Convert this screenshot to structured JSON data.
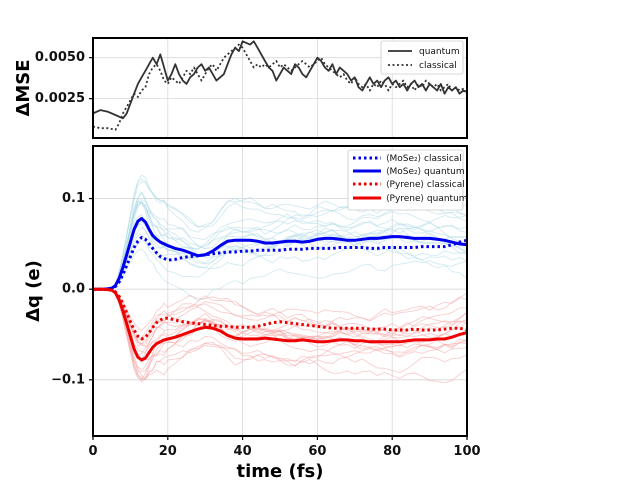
{
  "chart_data": [
    {
      "type": "line",
      "panel": "top",
      "title": "",
      "xlabel": "",
      "ylabel": "ΔMSE",
      "xlim": [
        0,
        100
      ],
      "ylim": [
        0.0001,
        0.0062
      ],
      "grid": true,
      "yticks": [
        {
          "value": 0.0025,
          "label": "0.0025"
        },
        {
          "value": 0.005,
          "label": "0.0050"
        }
      ],
      "legend": {
        "position": "top-right",
        "entries": [
          "quantum",
          "classical"
        ]
      },
      "series": [
        {
          "name": "quantum",
          "style": "solid",
          "color": "#333333",
          "x": [
            0,
            2,
            4,
            6,
            8,
            9,
            10,
            11,
            12,
            13,
            14,
            15,
            16,
            17,
            18,
            19,
            20,
            21,
            22,
            23,
            24,
            25,
            26,
            27,
            28,
            29,
            30,
            31,
            32,
            33,
            34,
            35,
            36,
            37,
            38,
            39,
            40,
            41,
            42,
            43,
            44,
            45,
            46,
            47,
            48,
            49,
            50,
            51,
            52,
            53,
            54,
            55,
            56,
            57,
            58,
            59,
            60,
            61,
            62,
            63,
            64,
            65,
            66,
            67,
            68,
            69,
            70,
            71,
            72,
            73,
            74,
            75,
            76,
            77,
            78,
            79,
            80,
            81,
            82,
            83,
            84,
            85,
            86,
            87,
            88,
            89,
            90,
            91,
            92,
            93,
            94,
            95,
            96,
            97,
            98,
            99,
            100
          ],
          "y": [
            0.0016,
            0.0018,
            0.0017,
            0.0015,
            0.0013,
            0.0016,
            0.0022,
            0.0028,
            0.0034,
            0.0038,
            0.0042,
            0.0046,
            0.005,
            0.0046,
            0.0052,
            0.0044,
            0.0036,
            0.004,
            0.0046,
            0.004,
            0.0036,
            0.0034,
            0.0038,
            0.004,
            0.0044,
            0.0046,
            0.0042,
            0.0044,
            0.004,
            0.0036,
            0.0038,
            0.004,
            0.0046,
            0.0052,
            0.0056,
            0.0054,
            0.006,
            0.0059,
            0.0058,
            0.006,
            0.0056,
            0.0052,
            0.0048,
            0.0044,
            0.0042,
            0.0036,
            0.004,
            0.0044,
            0.0042,
            0.004,
            0.0046,
            0.0044,
            0.004,
            0.0038,
            0.0042,
            0.0046,
            0.005,
            0.0048,
            0.0044,
            0.0042,
            0.0046,
            0.004,
            0.0044,
            0.0042,
            0.004,
            0.0036,
            0.0038,
            0.0032,
            0.003,
            0.0034,
            0.0038,
            0.0034,
            0.0036,
            0.0032,
            0.0036,
            0.0038,
            0.0034,
            0.0036,
            0.0032,
            0.0034,
            0.003,
            0.0034,
            0.0036,
            0.0032,
            0.0034,
            0.003,
            0.0034,
            0.0032,
            0.003,
            0.0034,
            0.0028,
            0.0032,
            0.003,
            0.0032,
            0.0028,
            0.003,
            0.0029
          ]
        },
        {
          "name": "classical",
          "style": "dotted",
          "color": "#333333",
          "x": [
            0,
            2,
            4,
            6,
            7,
            8,
            9,
            10,
            11,
            12,
            13,
            14,
            15,
            16,
            17,
            18,
            19,
            20,
            21,
            22,
            23,
            24,
            25,
            26,
            27,
            28,
            29,
            30,
            31,
            32,
            33,
            34,
            35,
            36,
            37,
            38,
            39,
            40,
            41,
            42,
            43,
            44,
            45,
            46,
            47,
            48,
            49,
            50,
            51,
            52,
            53,
            54,
            55,
            56,
            57,
            58,
            59,
            60,
            61,
            62,
            63,
            64,
            65,
            66,
            67,
            68,
            69,
            70,
            71,
            72,
            73,
            74,
            75,
            76,
            77,
            78,
            79,
            80,
            81,
            82,
            83,
            84,
            85,
            86,
            87,
            88,
            89,
            90,
            91,
            92,
            93,
            94,
            95,
            96,
            97,
            98,
            99,
            100
          ],
          "y": [
            0.0008,
            0.0007,
            0.0007,
            0.0006,
            0.001,
            0.0016,
            0.002,
            0.0024,
            0.0028,
            0.0026,
            0.003,
            0.0032,
            0.004,
            0.0044,
            0.0046,
            0.0042,
            0.0036,
            0.0034,
            0.0038,
            0.0036,
            0.0034,
            0.0038,
            0.0042,
            0.004,
            0.0044,
            0.004,
            0.0036,
            0.004,
            0.0044,
            0.0046,
            0.0042,
            0.0046,
            0.005,
            0.0052,
            0.0054,
            0.0056,
            0.0058,
            0.0056,
            0.0052,
            0.0048,
            0.0044,
            0.0046,
            0.0044,
            0.0046,
            0.0044,
            0.0046,
            0.0048,
            0.0044,
            0.0046,
            0.0044,
            0.0042,
            0.0044,
            0.0046,
            0.0048,
            0.0046,
            0.0044,
            0.0046,
            0.0048,
            0.005,
            0.0046,
            0.0044,
            0.0042,
            0.004,
            0.0038,
            0.004,
            0.0036,
            0.0034,
            0.0038,
            0.0034,
            0.0032,
            0.0034,
            0.003,
            0.0034,
            0.0032,
            0.0036,
            0.0034,
            0.003,
            0.0034,
            0.0032,
            0.0034,
            0.0036,
            0.0032,
            0.0034,
            0.003,
            0.0034,
            0.0032,
            0.0036,
            0.0034,
            0.0032,
            0.0034,
            0.003,
            0.0032,
            0.0034,
            0.003,
            0.0032,
            0.003,
            0.0031,
            0.003
          ]
        }
      ]
    },
    {
      "type": "line",
      "panel": "bottom",
      "title": "",
      "xlabel": "time (fs)",
      "ylabel": "Δq (e)",
      "xlim": [
        0,
        100
      ],
      "ylim": [
        -0.162,
        0.158
      ],
      "grid": true,
      "xticks": [
        {
          "value": 0,
          "label": "0"
        },
        {
          "value": 20,
          "label": "20"
        },
        {
          "value": 40,
          "label": "40"
        },
        {
          "value": 60,
          "label": "60"
        },
        {
          "value": 80,
          "label": "80"
        },
        {
          "value": 100,
          "label": "100"
        }
      ],
      "yticks": [
        {
          "value": -0.1,
          "label": "−0.1"
        },
        {
          "value": 0.0,
          "label": "0.0"
        },
        {
          "value": 0.1,
          "label": "0.1"
        }
      ],
      "legend": {
        "position": "top-right",
        "entries": [
          "⟨MoSe₂⟩ classical",
          "⟨MoSe₂⟩ quantum",
          "⟨Pyrene⟩ classical",
          "⟨Pyrene⟩ quantum"
        ]
      },
      "series": [
        {
          "name": "⟨MoSe₂⟩ classical",
          "style": "dotted",
          "color": "#0000ee",
          "x": [
            0,
            3,
            5,
            6,
            7,
            8,
            9,
            10,
            11,
            12,
            13,
            14,
            15,
            16,
            17,
            18,
            19,
            20,
            22,
            24,
            26,
            28,
            30,
            32,
            34,
            36,
            38,
            40,
            42,
            44,
            46,
            48,
            50,
            52,
            54,
            56,
            58,
            60,
            62,
            64,
            66,
            68,
            70,
            72,
            74,
            76,
            78,
            80,
            82,
            84,
            86,
            88,
            90,
            92,
            94,
            96,
            98,
            100
          ],
          "y": [
            0,
            0,
            0.001,
            0.003,
            0.008,
            0.016,
            0.026,
            0.036,
            0.046,
            0.053,
            0.057,
            0.055,
            0.05,
            0.045,
            0.04,
            0.036,
            0.034,
            0.032,
            0.033,
            0.035,
            0.036,
            0.037,
            0.038,
            0.039,
            0.04,
            0.041,
            0.041,
            0.042,
            0.042,
            0.043,
            0.043,
            0.043,
            0.043,
            0.044,
            0.044,
            0.044,
            0.045,
            0.045,
            0.045,
            0.045,
            0.046,
            0.046,
            0.046,
            0.046,
            0.045,
            0.045,
            0.046,
            0.046,
            0.046,
            0.046,
            0.046,
            0.047,
            0.047,
            0.047,
            0.047,
            0.049,
            0.052,
            0.054
          ]
        },
        {
          "name": "⟨MoSe₂⟩ quantum",
          "style": "solid",
          "color": "#0000ee",
          "x": [
            0,
            3,
            5,
            6,
            7,
            8,
            9,
            10,
            11,
            12,
            13,
            14,
            15,
            16,
            17,
            18,
            19,
            20,
            22,
            24,
            26,
            28,
            30,
            32,
            34,
            36,
            38,
            40,
            42,
            44,
            46,
            48,
            50,
            52,
            54,
            56,
            58,
            60,
            62,
            64,
            66,
            68,
            70,
            72,
            74,
            76,
            78,
            80,
            82,
            84,
            86,
            88,
            90,
            92,
            94,
            96,
            98,
            100
          ],
          "y": [
            0,
            0,
            0.001,
            0.004,
            0.012,
            0.024,
            0.038,
            0.052,
            0.066,
            0.075,
            0.078,
            0.074,
            0.066,
            0.059,
            0.055,
            0.052,
            0.05,
            0.048,
            0.045,
            0.043,
            0.04,
            0.037,
            0.038,
            0.042,
            0.048,
            0.053,
            0.054,
            0.054,
            0.054,
            0.053,
            0.051,
            0.051,
            0.052,
            0.053,
            0.053,
            0.052,
            0.053,
            0.055,
            0.056,
            0.056,
            0.055,
            0.054,
            0.054,
            0.055,
            0.056,
            0.056,
            0.057,
            0.058,
            0.058,
            0.057,
            0.056,
            0.056,
            0.056,
            0.055,
            0.054,
            0.052,
            0.05,
            0.049
          ]
        },
        {
          "name": "⟨Pyrene⟩ classical",
          "style": "dotted",
          "color": "#ee0000",
          "x": [
            0,
            3,
            5,
            6,
            7,
            8,
            9,
            10,
            11,
            12,
            13,
            14,
            15,
            16,
            17,
            18,
            19,
            20,
            22,
            24,
            26,
            28,
            30,
            32,
            34,
            36,
            38,
            40,
            42,
            44,
            46,
            48,
            50,
            52,
            54,
            56,
            58,
            60,
            62,
            64,
            66,
            68,
            70,
            72,
            74,
            76,
            78,
            80,
            82,
            84,
            86,
            88,
            90,
            92,
            94,
            96,
            98,
            100
          ],
          "y": [
            0,
            0,
            -0.001,
            -0.003,
            -0.008,
            -0.016,
            -0.026,
            -0.036,
            -0.045,
            -0.052,
            -0.055,
            -0.053,
            -0.048,
            -0.042,
            -0.037,
            -0.034,
            -0.032,
            -0.032,
            -0.034,
            -0.036,
            -0.037,
            -0.038,
            -0.039,
            -0.04,
            -0.041,
            -0.041,
            -0.042,
            -0.042,
            -0.042,
            -0.041,
            -0.039,
            -0.037,
            -0.036,
            -0.037,
            -0.038,
            -0.039,
            -0.04,
            -0.041,
            -0.042,
            -0.043,
            -0.043,
            -0.043,
            -0.043,
            -0.043,
            -0.044,
            -0.044,
            -0.044,
            -0.045,
            -0.045,
            -0.045,
            -0.044,
            -0.045,
            -0.045,
            -0.045,
            -0.044,
            -0.043,
            -0.043,
            -0.045
          ]
        },
        {
          "name": "⟨Pyrene⟩ quantum",
          "style": "solid",
          "color": "#ee0000",
          "x": [
            0,
            3,
            5,
            6,
            7,
            8,
            9,
            10,
            11,
            12,
            13,
            14,
            15,
            16,
            17,
            18,
            19,
            20,
            22,
            24,
            26,
            28,
            30,
            32,
            34,
            36,
            38,
            40,
            42,
            44,
            46,
            48,
            50,
            52,
            54,
            56,
            58,
            60,
            62,
            64,
            66,
            68,
            70,
            72,
            74,
            76,
            78,
            80,
            82,
            84,
            86,
            88,
            90,
            92,
            94,
            96,
            98,
            100
          ],
          "y": [
            0,
            0,
            -0.001,
            -0.004,
            -0.012,
            -0.024,
            -0.038,
            -0.052,
            -0.066,
            -0.075,
            -0.078,
            -0.076,
            -0.07,
            -0.064,
            -0.06,
            -0.058,
            -0.056,
            -0.055,
            -0.053,
            -0.05,
            -0.047,
            -0.044,
            -0.042,
            -0.043,
            -0.046,
            -0.051,
            -0.054,
            -0.055,
            -0.055,
            -0.055,
            -0.054,
            -0.055,
            -0.056,
            -0.057,
            -0.057,
            -0.056,
            -0.057,
            -0.058,
            -0.058,
            -0.057,
            -0.056,
            -0.056,
            -0.057,
            -0.057,
            -0.058,
            -0.058,
            -0.058,
            -0.058,
            -0.058,
            -0.057,
            -0.056,
            -0.056,
            -0.056,
            -0.055,
            -0.055,
            -0.053,
            -0.05,
            -0.048
          ]
        }
      ],
      "background_series": {
        "count_per_group": 18,
        "groups": [
          {
            "group": "MoSe2",
            "color": "#add8e6",
            "base_series": "⟨MoSe₂⟩ quantum"
          },
          {
            "group": "Pyrene",
            "color": "#f4a6a6",
            "base_series": "⟨Pyrene⟩ quantum"
          }
        ]
      }
    }
  ]
}
